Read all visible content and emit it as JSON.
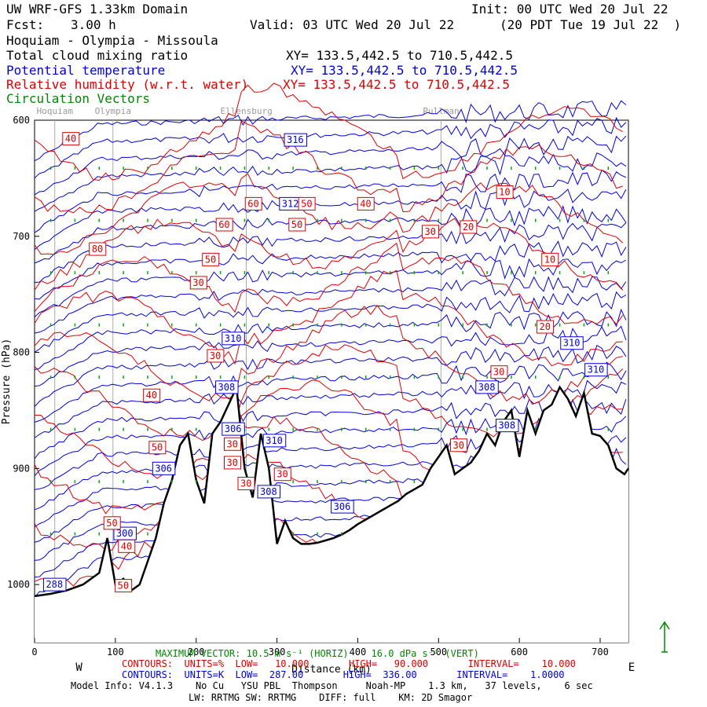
{
  "header": {
    "domain_title": "UW WRF-GFS 1.33km Domain",
    "init": "Init: 00 UTC Wed 20 Jul 22",
    "fcst_label": "Fcst:",
    "fcst_value": "3.00 h",
    "valid": "Valid: 03 UTC Wed 20 Jul 22",
    "valid_local": "(20 PDT Tue 19 Jul 22  )",
    "route": "Hoquiam - Olympia - Missoula"
  },
  "fields": [
    {
      "name": "Total cloud mixing ratio",
      "xy": "XY= 133.5,442.5 to 710.5,442.5",
      "color": "#000000"
    },
    {
      "name": "Potential temperature",
      "xy": "XY= 133.5,442.5 to 710.5,442.5",
      "color": "#0000dd"
    },
    {
      "name": "Relative humidity (w.r.t. water)",
      "xy": "XY= 133.5,442.5 to 710.5,442.5",
      "color": "#dd0000"
    },
    {
      "name": "Circulation Vectors",
      "xy": "",
      "color": "#008800"
    }
  ],
  "chart_data": {
    "type": "line",
    "title": "",
    "xlabel": "Distance (km)",
    "ylabel": "Pressure (hPa)",
    "xlim": [
      0,
      735
    ],
    "ylim": [
      1050,
      600
    ],
    "x_ticks": [
      0,
      100,
      200,
      300,
      400,
      500,
      600,
      700
    ],
    "y_ticks": [
      600,
      700,
      800,
      900,
      1000
    ],
    "y_tick_labels": [
      "600",
      "700",
      "800",
      "900",
      "1000"
    ],
    "end_labels": {
      "left": "W",
      "right": "E"
    },
    "locations": [
      {
        "name": "Hoquiam",
        "km": 25
      },
      {
        "name": "Olympia",
        "km": 97
      },
      {
        "name": "Ellensburg",
        "km": 262
      },
      {
        "name": "Pullman",
        "km": 503
      }
    ],
    "terrain": {
      "name": "Surface",
      "x": [
        0,
        20,
        40,
        60,
        80,
        90,
        100,
        110,
        120,
        130,
        140,
        150,
        160,
        170,
        180,
        190,
        200,
        210,
        220,
        230,
        240,
        250,
        260,
        270,
        280,
        290,
        300,
        310,
        320,
        330,
        340,
        350,
        360,
        370,
        380,
        390,
        400,
        410,
        420,
        430,
        440,
        450,
        460,
        470,
        480,
        490,
        500,
        510,
        520,
        530,
        540,
        550,
        560,
        570,
        580,
        590,
        600,
        610,
        620,
        630,
        640,
        650,
        660,
        670,
        680,
        690,
        700,
        710,
        720,
        730,
        735
      ],
      "y": [
        1010,
        1008,
        1005,
        1000,
        990,
        960,
        1000,
        995,
        1005,
        1000,
        980,
        960,
        930,
        910,
        880,
        870,
        910,
        930,
        870,
        860,
        845,
        830,
        900,
        925,
        870,
        900,
        965,
        945,
        960,
        965,
        965,
        964,
        962,
        960,
        957,
        953,
        948,
        944,
        940,
        936,
        932,
        928,
        922,
        918,
        914,
        900,
        890,
        880,
        905,
        900,
        895,
        885,
        870,
        880,
        860,
        850,
        890,
        850,
        870,
        850,
        845,
        830,
        840,
        855,
        835,
        870,
        872,
        880,
        900,
        905,
        900
      ]
    },
    "series": [
      {
        "name": "Potential temperature",
        "units": "K",
        "color": "#0000dd",
        "values": [
          {
            "value": 312,
            "x": 317,
            "y": 672
          },
          {
            "value": 316,
            "x": 323,
            "y": 617
          },
          {
            "value": 310,
            "x": 246,
            "y": 788
          },
          {
            "value": 308,
            "x": 238,
            "y": 830
          },
          {
            "value": 306,
            "x": 246,
            "y": 866
          },
          {
            "value": 306,
            "x": 160,
            "y": 900
          },
          {
            "value": 310,
            "x": 297,
            "y": 876
          },
          {
            "value": 308,
            "x": 290,
            "y": 920
          },
          {
            "value": 306,
            "x": 381,
            "y": 933
          },
          {
            "value": 308,
            "x": 560,
            "y": 830
          },
          {
            "value": 308,
            "x": 585,
            "y": 863
          },
          {
            "value": 310,
            "x": 665,
            "y": 792
          },
          {
            "value": 310,
            "x": 695,
            "y": 815
          },
          {
            "value": 300,
            "x": 112,
            "y": 956
          },
          {
            "value": 288,
            "x": 25,
            "y": 1000
          }
        ]
      },
      {
        "name": "Relative humidity",
        "units": "%",
        "color": "#dd0000",
        "values": [
          {
            "value": 40,
            "x": 45,
            "y": 616
          },
          {
            "value": 40,
            "x": 410,
            "y": 672
          },
          {
            "value": 10,
            "x": 582,
            "y": 662
          },
          {
            "value": 60,
            "x": 271,
            "y": 672
          },
          {
            "value": 60,
            "x": 235,
            "y": 690
          },
          {
            "value": 50,
            "x": 337,
            "y": 672
          },
          {
            "value": 50,
            "x": 325,
            "y": 690
          },
          {
            "value": 30,
            "x": 490,
            "y": 696
          },
          {
            "value": 20,
            "x": 537,
            "y": 692
          },
          {
            "value": 80,
            "x": 78,
            "y": 711
          },
          {
            "value": 50,
            "x": 218,
            "y": 720
          },
          {
            "value": 30,
            "x": 203,
            "y": 740
          },
          {
            "value": 10,
            "x": 638,
            "y": 720
          },
          {
            "value": 20,
            "x": 632,
            "y": 778
          },
          {
            "value": 30,
            "x": 224,
            "y": 803
          },
          {
            "value": 30,
            "x": 575,
            "y": 817
          },
          {
            "value": 40,
            "x": 145,
            "y": 837
          },
          {
            "value": 50,
            "x": 152,
            "y": 882
          },
          {
            "value": 30,
            "x": 245,
            "y": 879
          },
          {
            "value": 30,
            "x": 245,
            "y": 895
          },
          {
            "value": 30,
            "x": 262,
            "y": 913
          },
          {
            "value": 30,
            "x": 307,
            "y": 905
          },
          {
            "value": 30,
            "x": 525,
            "y": 880
          },
          {
            "value": 50,
            "x": 96,
            "y": 947
          },
          {
            "value": 40,
            "x": 114,
            "y": 967
          },
          {
            "value": 50,
            "x": 110,
            "y": 1001
          }
        ]
      }
    ],
    "max_vector": "MAXIMUM VECTOR: 10.5 m s⁻¹ (HORIZ)    16.0 dPa s⁻¹ (VERT)",
    "vector_arrow_color": "#008800"
  },
  "footer": {
    "red_contours": "CONTOURS:  UNITS=%  LOW=   10.000       HIGH=   90.000       INTERVAL=    10.000",
    "blue_contours": "CONTOURS:  UNITS=K  LOW=  287.00       HIGH=  336.00       INTERVAL=    1.0000",
    "model_info": "Model Info: V4.1.3    No Cu   YSU PBL  Thompson     Noah-MP    1.3 km,   37 levels,    6 sec",
    "model_info2": "LW: RRTMG SW: RRTMG    DIFF: full    KM: 2D Smagor"
  }
}
